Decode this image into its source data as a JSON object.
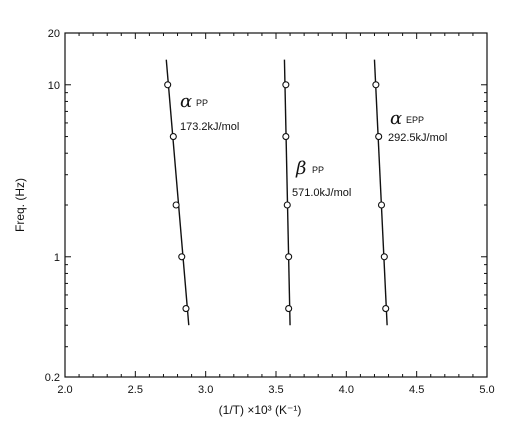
{
  "chart_data": {
    "type": "scatter",
    "title": "",
    "xlabel": "(1/T) ×10³ (K⁻¹)",
    "ylabel": "Freq. (Hz)",
    "xlim": [
      2.0,
      5.0
    ],
    "ylim": [
      0.2,
      20
    ],
    "yscale": "log",
    "grid": false,
    "legend": "none",
    "xticks": [
      {
        "value": 2.0,
        "label": "2.0"
      },
      {
        "value": 2.5,
        "label": "2.5"
      },
      {
        "value": 3.0,
        "label": "3.0"
      },
      {
        "value": 3.5,
        "label": "3.5"
      },
      {
        "value": 4.0,
        "label": "4.0"
      },
      {
        "value": 4.5,
        "label": "4.5"
      },
      {
        "value": 5.0,
        "label": "5.0"
      }
    ],
    "yticks": [
      {
        "value": 0.2,
        "label": "0.2"
      },
      {
        "value": 1,
        "label": "1"
      },
      {
        "value": 10,
        "label": "10"
      },
      {
        "value": 20,
        "label": "20"
      }
    ],
    "series": [
      {
        "points": [
          {
            "x": 2.73,
            "y": 10
          },
          {
            "x": 2.77,
            "y": 5
          },
          {
            "x": 2.79,
            "y": 2
          },
          {
            "x": 2.83,
            "y": 1
          },
          {
            "x": 2.86,
            "y": 0.5
          }
        ],
        "fit": [
          {
            "x": 2.72,
            "y": 14
          },
          {
            "x": 2.88,
            "y": 0.4
          }
        ],
        "annotation": {
          "symbol": "α",
          "subscript": "PP",
          "energy": "173.2kJ/mol"
        }
      },
      {
        "points": [
          {
            "x": 3.57,
            "y": 10
          },
          {
            "x": 3.57,
            "y": 5
          },
          {
            "x": 3.58,
            "y": 2
          },
          {
            "x": 3.59,
            "y": 1
          },
          {
            "x": 3.59,
            "y": 0.5
          }
        ],
        "fit": [
          {
            "x": 3.56,
            "y": 14
          },
          {
            "x": 3.6,
            "y": 0.4
          }
        ],
        "annotation": {
          "symbol": "β",
          "subscript": "PP",
          "energy": "571.0kJ/mol"
        }
      },
      {
        "points": [
          {
            "x": 4.21,
            "y": 10
          },
          {
            "x": 4.23,
            "y": 5
          },
          {
            "x": 4.25,
            "y": 2
          },
          {
            "x": 4.27,
            "y": 1
          },
          {
            "x": 4.28,
            "y": 0.5
          }
        ],
        "fit": [
          {
            "x": 4.2,
            "y": 14
          },
          {
            "x": 4.29,
            "y": 0.4
          }
        ],
        "annotation": {
          "symbol": "α",
          "subscript": "EPP",
          "energy": "292.5kJ/mol"
        }
      }
    ]
  }
}
